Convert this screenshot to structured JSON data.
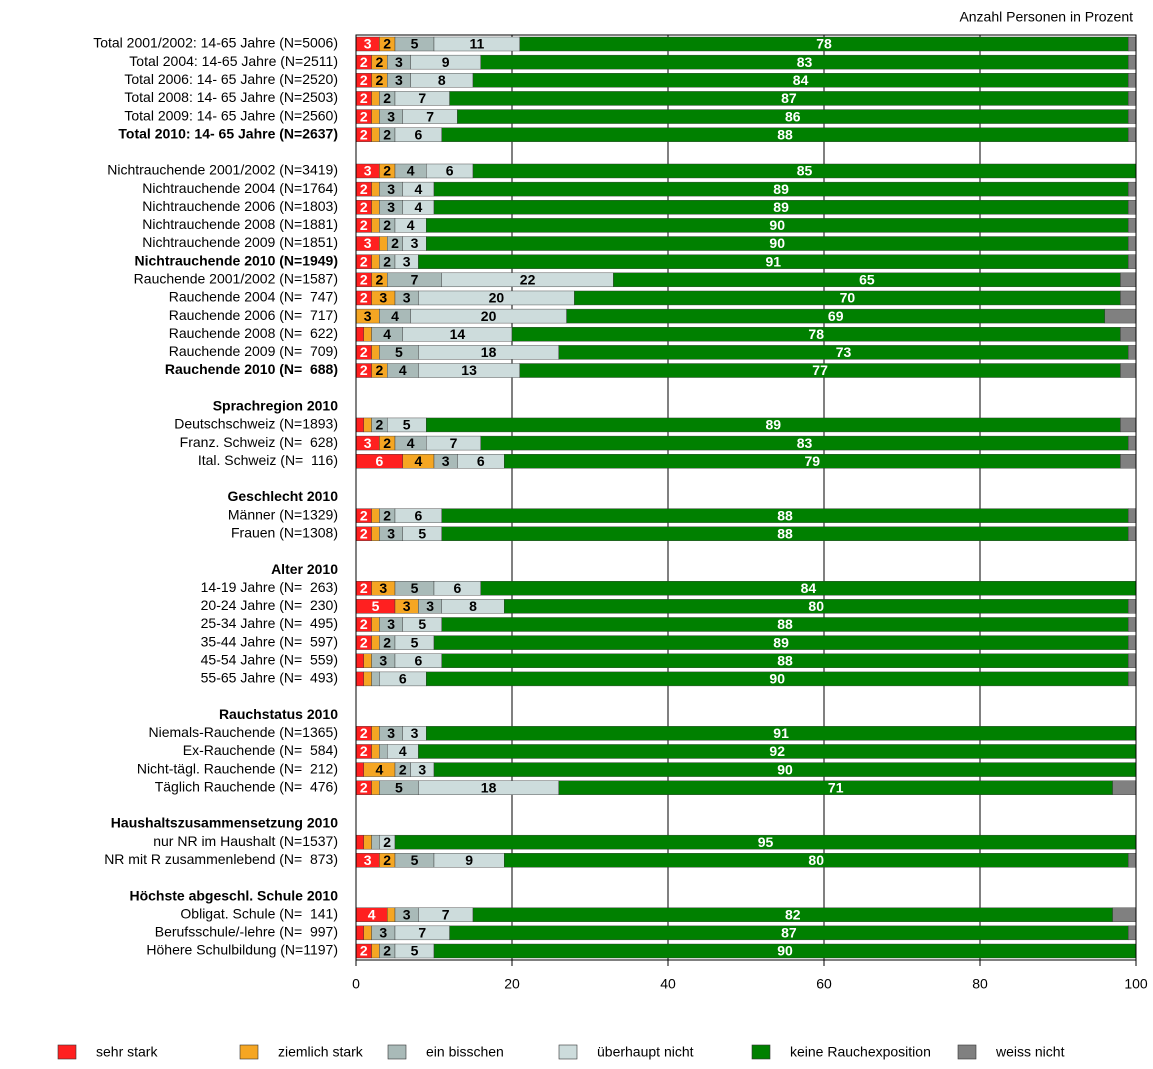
{
  "chart_data": {
    "type": "stacked-barh",
    "xlabel": "Anzahl Personen in Prozent",
    "categories": [
      "Total 2001/2002: 14-65 Jahre (N=5006)",
      "Total 2004: 14-65 Jahre (N=2511)",
      "Total 2006: 14- 65 Jahre (N=2520)",
      "Total 2008: 14- 65 Jahre (N=2503)",
      "Total 2009: 14- 65 Jahre (N=2560)",
      "Total 2010: 14- 65 Jahre (N=2637)",
      null,
      "Nichtrauchende 2001/2002 (N=3419)",
      "Nichtrauchende 2004 (N=1764)",
      "Nichtrauchende 2006 (N=1803)",
      "Nichtrauchende 2008 (N=1881)",
      "Nichtrauchende 2009 (N=1851)",
      "Nichtrauchende 2010 (N=1949)",
      "Rauchende 2001/2002 (N=1587)",
      "Rauchende 2004 (N=  747)",
      "Rauchende 2006 (N=  717)",
      "Rauchende 2008 (N=  622)",
      "Rauchende 2009 (N=  709)",
      "Rauchende 2010 (N=  688)",
      null,
      "Sprachregion 2010",
      "Deutschschweiz (N=1893)",
      "Franz. Schweiz (N=  628)",
      "Ital. Schweiz (N=  116)",
      null,
      "Geschlecht 2010",
      "Männer (N=1329)",
      "Frauen (N=1308)",
      null,
      "Alter 2010",
      "14-19 Jahre (N=  263)",
      "20-24 Jahre (N=  230)",
      "25-34 Jahre (N=  495)",
      "35-44 Jahre (N=  597)",
      "45-54 Jahre (N=  559)",
      "55-65 Jahre (N=  493)",
      null,
      "Rauchstatus 2010",
      "Niemals-Rauchende (N=1365)",
      "Ex-Rauchende (N=  584)",
      "Nicht-tägl. Rauchende (N=  212)",
      "Täglich Rauchende (N=  476)",
      null,
      "Haushaltszusammensetzung 2010",
      "nur NR im Haushalt (N=1537)",
      "NR mit R zusammenlebend (N=  873)",
      null,
      "Höchste abgeschl. Schule 2010",
      "Obligat. Schule (N=  141)",
      "Berufsschule/-lehre (N=  997)",
      "Höhere Schulbildung (N=1197)"
    ],
    "bold": [
      5,
      12,
      18,
      20,
      25,
      29,
      37,
      43,
      47
    ],
    "series": [
      {
        "name": "sehr stark",
        "color": "#ff2020",
        "label_color": "#ffffff",
        "show_labels": true,
        "values": [
          3,
          2,
          2,
          2,
          2,
          2,
          null,
          3,
          2,
          2,
          2,
          3,
          2,
          2,
          2,
          0,
          1,
          2,
          2,
          null,
          null,
          1,
          3,
          6,
          null,
          null,
          2,
          2,
          null,
          null,
          2,
          5,
          2,
          2,
          1,
          1,
          null,
          null,
          2,
          2,
          1,
          2,
          null,
          null,
          1,
          3,
          null,
          null,
          4,
          1,
          2
        ]
      },
      {
        "name": "ziemlich stark",
        "color": "#f5a623",
        "label_color": "#000000",
        "show_labels": true,
        "values": [
          2,
          2,
          2,
          1,
          1,
          1,
          null,
          2,
          1,
          1,
          1,
          1,
          1,
          2,
          3,
          3,
          1,
          1,
          2,
          null,
          null,
          1,
          2,
          4,
          null,
          null,
          1,
          1,
          null,
          null,
          3,
          3,
          1,
          1,
          1,
          1,
          null,
          null,
          1,
          1,
          4,
          1,
          null,
          null,
          1,
          2,
          null,
          null,
          1,
          1,
          1
        ]
      },
      {
        "name": "ein bisschen",
        "color": "#a9bab8",
        "label_color": "#000000",
        "show_labels": true,
        "values": [
          5,
          3,
          3,
          2,
          3,
          2,
          null,
          4,
          3,
          3,
          2,
          2,
          2,
          7,
          3,
          4,
          4,
          5,
          4,
          null,
          null,
          2,
          4,
          3,
          null,
          null,
          2,
          3,
          null,
          null,
          5,
          3,
          3,
          2,
          3,
          1,
          null,
          null,
          3,
          1,
          2,
          5,
          null,
          null,
          1,
          5,
          null,
          null,
          3,
          3,
          2
        ]
      },
      {
        "name": "überhaupt nicht",
        "color": "#cddcdc",
        "label_color": "#000000",
        "show_labels": true,
        "values": [
          11,
          9,
          8,
          7,
          7,
          6,
          null,
          6,
          4,
          4,
          4,
          3,
          3,
          22,
          20,
          20,
          14,
          18,
          13,
          null,
          null,
          5,
          7,
          6,
          null,
          null,
          6,
          5,
          null,
          null,
          6,
          8,
          5,
          5,
          6,
          6,
          null,
          null,
          3,
          4,
          3,
          18,
          null,
          null,
          2,
          9,
          null,
          null,
          7,
          7,
          5
        ]
      },
      {
        "name": "keine Rauchexposition",
        "color": "#008000",
        "label_color": "#ffffff",
        "show_labels": true,
        "values": [
          78,
          83,
          84,
          87,
          86,
          88,
          null,
          85,
          89,
          89,
          90,
          90,
          91,
          65,
          70,
          69,
          78,
          73,
          77,
          null,
          null,
          89,
          83,
          79,
          null,
          null,
          88,
          88,
          null,
          null,
          84,
          80,
          88,
          89,
          88,
          90,
          null,
          null,
          91,
          92,
          90,
          71,
          null,
          null,
          95,
          80,
          null,
          null,
          82,
          87,
          90
        ]
      },
      {
        "name": "weiss nicht",
        "color": "#808080",
        "label_color": "#000000",
        "show_labels": false,
        "values": [
          1,
          1,
          1,
          1,
          1,
          1,
          null,
          0,
          1,
          1,
          1,
          1,
          1,
          2,
          2,
          4,
          2,
          1,
          2,
          null,
          null,
          2,
          1,
          2,
          null,
          null,
          1,
          1,
          null,
          null,
          0,
          1,
          1,
          1,
          1,
          1,
          null,
          null,
          0,
          0,
          0,
          3,
          null,
          null,
          0,
          1,
          null,
          null,
          3,
          1,
          0
        ]
      }
    ],
    "xlim": [
      0,
      100
    ],
    "xticks": [
      0,
      20,
      40,
      60,
      80,
      100
    ],
    "grid": true
  }
}
